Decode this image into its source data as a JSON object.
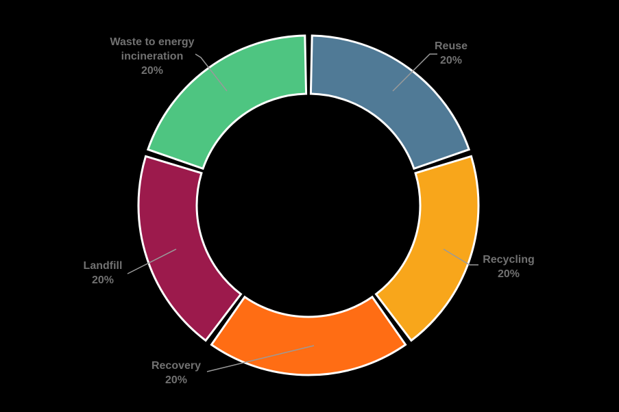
{
  "background_color": "#000000",
  "chart_data": {
    "type": "pie",
    "subtype": "donut",
    "title": "",
    "unit": "%",
    "total": 100,
    "legend": "none",
    "grid": "off",
    "labels_position": "outside-with-leader-lines",
    "start_angle_deg": 0,
    "direction": "clockwise",
    "slice_border_color": "#FFFFFF",
    "label_text_color": "#717171",
    "leader_line_color": "#9A9A9A",
    "categories": [
      "Reuse",
      "Recycling",
      "Recovery",
      "Landfill",
      "Waste to energy incineration"
    ],
    "values": [
      20,
      20,
      20,
      20,
      20
    ],
    "slices": [
      {
        "id": "reuse",
        "name": "Reuse",
        "value": 20,
        "value_label": "20%",
        "color": "#507A96"
      },
      {
        "id": "recycling",
        "name": "Recycling",
        "value": 20,
        "value_label": "20%",
        "color": "#F8A61B"
      },
      {
        "id": "recovery",
        "name": "Recovery",
        "value": 20,
        "value_label": "20%",
        "color": "#FF6D14"
      },
      {
        "id": "landfill",
        "name": "Landfill",
        "value": 20,
        "value_label": "20%",
        "color": "#9C1A4C"
      },
      {
        "id": "waste-to-energy-incineration",
        "name": "Waste to energy incineration",
        "value": 20,
        "value_label": "20%",
        "color": "#4EC581"
      }
    ]
  }
}
